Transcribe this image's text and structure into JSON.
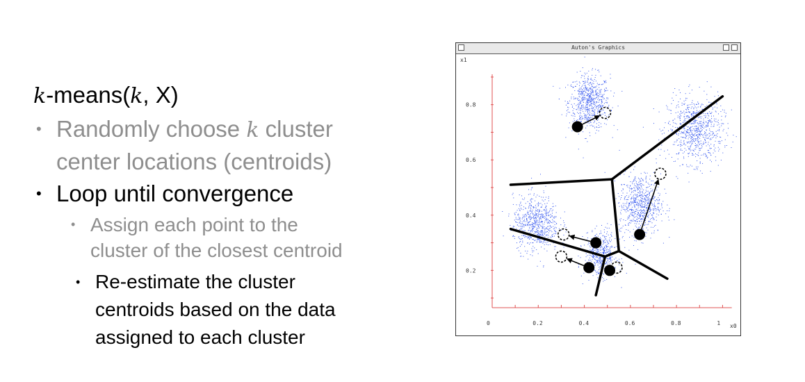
{
  "slide": {
    "title_k": "k",
    "title_mid": "-means(",
    "title_k2": "k",
    "title_end": ", X)",
    "bullet1": {
      "bullet": "•",
      "line1_a": "Randomly choose ",
      "line1_k": "k",
      "line1_b": " cluster",
      "line2": "center locations (centroids)"
    },
    "bullet2": {
      "bullet": "•",
      "text": "Loop until convergence"
    },
    "sub1": {
      "bullet": "•",
      "line1": "Assign each point to the",
      "line2": "cluster of the closest centroid"
    },
    "sub2": {
      "bullet": "•",
      "line1": "Re-estimate the cluster",
      "line2": "centroids based on the data",
      "line3": "assigned to each cluster"
    }
  },
  "window": {
    "title": "Auton's Graphics"
  },
  "chart_data": {
    "type": "scatter",
    "title": "",
    "xlabel": "x0",
    "ylabel": "x1",
    "xlim": [
      0,
      1.05
    ],
    "ylim": [
      0.07,
      0.93
    ],
    "xticks": [
      "0",
      "0.2",
      "0.4",
      "0.6",
      "0.8",
      "1"
    ],
    "yticks": [
      "0.2",
      "0.4",
      "0.6",
      "0.8"
    ],
    "axis_color": "#e05050",
    "point_color": "#3355ee",
    "grid": false,
    "clusters": [
      {
        "cx": 0.42,
        "cy": 0.81,
        "sx": 0.045,
        "sy": 0.05,
        "n": 700
      },
      {
        "cx": 0.88,
        "cy": 0.71,
        "sx": 0.06,
        "sy": 0.06,
        "n": 800
      },
      {
        "cx": 0.64,
        "cy": 0.44,
        "sx": 0.045,
        "sy": 0.055,
        "n": 700
      },
      {
        "cx": 0.19,
        "cy": 0.37,
        "sx": 0.05,
        "sy": 0.05,
        "n": 700
      },
      {
        "cx": 0.47,
        "cy": 0.26,
        "sx": 0.035,
        "sy": 0.04,
        "n": 500
      }
    ],
    "voronoi_lines": [
      [
        [
          0.08,
          0.51
        ],
        [
          0.52,
          0.53
        ]
      ],
      [
        [
          0.52,
          0.53
        ],
        [
          1.0,
          0.83
        ]
      ],
      [
        [
          0.52,
          0.53
        ],
        [
          0.55,
          0.27
        ]
      ],
      [
        [
          0.08,
          0.35
        ],
        [
          0.49,
          0.25
        ]
      ],
      [
        [
          0.49,
          0.25
        ],
        [
          0.55,
          0.27
        ]
      ],
      [
        [
          0.55,
          0.27
        ],
        [
          0.76,
          0.17
        ]
      ],
      [
        [
          0.49,
          0.25
        ],
        [
          0.45,
          0.11
        ]
      ]
    ],
    "moves": [
      {
        "from": [
          0.37,
          0.72
        ],
        "to": [
          0.49,
          0.77
        ]
      },
      {
        "from": [
          0.64,
          0.33
        ],
        "to": [
          0.73,
          0.55
        ]
      },
      {
        "from": [
          0.45,
          0.3
        ],
        "to": [
          0.31,
          0.33
        ]
      },
      {
        "from": [
          0.42,
          0.21
        ],
        "to": [
          0.3,
          0.25
        ]
      },
      {
        "from": [
          0.51,
          0.2
        ],
        "to": [
          0.54,
          0.21
        ]
      }
    ]
  }
}
